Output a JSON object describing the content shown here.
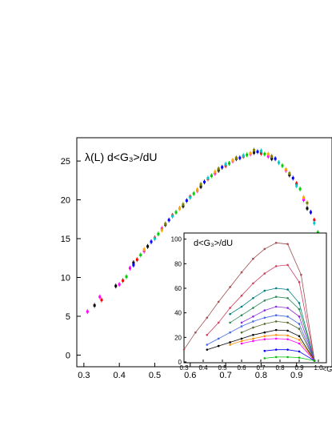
{
  "chart_data": [
    {
      "type": "scatter",
      "title": "",
      "annotation": "λ(L) d<G₃>/dU",
      "xlabel": "",
      "ylabel": "",
      "xlim": [
        0.28,
        1.0
      ],
      "ylim": [
        -1.5,
        28
      ],
      "xticks": [
        "0.3",
        "0.4",
        "0.5",
        "0.6",
        "0.7",
        "0.8",
        "0.9"
      ],
      "yticks": [
        "0",
        "5",
        "10",
        "15",
        "20",
        "25"
      ],
      "grid": false,
      "series": [
        {
          "color": "#ff00ff",
          "x": [
            0.31,
            0.345,
            0.4,
            0.43,
            0.47,
            0.52,
            0.57,
            0.62,
            0.67,
            0.72,
            0.77,
            0.82,
            0.87,
            0.92
          ],
          "y": [
            5.6,
            7.5,
            9.1,
            11.2,
            13.4,
            16.3,
            18.9,
            21.2,
            23.4,
            25.0,
            25.9,
            25.6,
            23.8,
            20.0
          ]
        },
        {
          "color": "#000000",
          "x": [
            0.33,
            0.39,
            0.44,
            0.48,
            0.53,
            0.58,
            0.63,
            0.68,
            0.73,
            0.78,
            0.83,
            0.88,
            0.93
          ],
          "y": [
            6.4,
            8.9,
            11.9,
            14.0,
            16.8,
            19.2,
            21.7,
            23.8,
            25.3,
            26.1,
            25.3,
            23.2,
            18.9
          ]
        },
        {
          "color": "#ff0000",
          "x": [
            0.35,
            0.41,
            0.45,
            0.5,
            0.55,
            0.6,
            0.65,
            0.7,
            0.75,
            0.8,
            0.85,
            0.9,
            0.95
          ],
          "y": [
            7.1,
            9.6,
            12.3,
            15.1,
            18.0,
            20.4,
            22.7,
            24.4,
            25.6,
            26.0,
            24.8,
            22.1,
            17.4
          ]
        },
        {
          "color": "#00cc00",
          "x": [
            0.42,
            0.46,
            0.51,
            0.56,
            0.61,
            0.66,
            0.71,
            0.76,
            0.81,
            0.86,
            0.91,
            0.96
          ],
          "y": [
            10.1,
            12.9,
            15.6,
            18.4,
            20.8,
            23.1,
            24.7,
            25.8,
            25.9,
            24.4,
            21.4,
            15.8
          ]
        },
        {
          "color": "#0000ff",
          "x": [
            0.44,
            0.49,
            0.54,
            0.59,
            0.64,
            0.69,
            0.74,
            0.79,
            0.84,
            0.89,
            0.94
          ],
          "y": [
            11.6,
            14.6,
            17.4,
            19.9,
            22.3,
            24.2,
            25.4,
            26.2,
            25.3,
            22.8,
            18.4
          ]
        },
        {
          "color": "#ffa500",
          "x": [
            0.47,
            0.52,
            0.57,
            0.62,
            0.67,
            0.72,
            0.77,
            0.82,
            0.87,
            0.92,
            0.97
          ],
          "y": [
            13.6,
            16.1,
            18.9,
            21.3,
            23.6,
            25.1,
            26.0,
            25.9,
            23.9,
            20.3,
            14.6
          ]
        },
        {
          "color": "#00cccc",
          "x": [
            0.5,
            0.55,
            0.6,
            0.65,
            0.7,
            0.75,
            0.8,
            0.85,
            0.9,
            0.95
          ],
          "y": [
            15.0,
            17.9,
            20.3,
            22.8,
            24.6,
            25.7,
            26.3,
            24.8,
            21.8,
            17.0
          ]
        },
        {
          "color": "#808000",
          "x": [
            0.53,
            0.58,
            0.63,
            0.68,
            0.73,
            0.78,
            0.83,
            0.88,
            0.93
          ],
          "y": [
            16.9,
            19.4,
            22.0,
            24.0,
            25.4,
            26.4,
            25.6,
            23.4,
            19.6
          ]
        }
      ]
    },
    {
      "type": "line",
      "title": "",
      "annotation": "d<G₃>/dU",
      "xlabel": "<G",
      "ylabel": "",
      "xlim": [
        0.3,
        1.0
      ],
      "ylim": [
        0,
        105
      ],
      "xticks": [
        "0.3",
        "0.4",
        "0.5",
        "0.6",
        "0.7",
        "0.8",
        "0.9",
        "1.0"
      ],
      "yticks": [
        "0",
        "20",
        "40",
        "60",
        "80",
        "100"
      ],
      "grid": false,
      "series": [
        {
          "color": "#a05050",
          "x": [
            0.3,
            0.36,
            0.42,
            0.48,
            0.54,
            0.6,
            0.66,
            0.72,
            0.78,
            0.84,
            0.91,
            0.98
          ],
          "y": [
            10,
            24,
            36,
            49,
            61,
            73,
            84,
            92,
            97,
            96,
            71,
            1
          ]
        },
        {
          "color": "#d04060",
          "x": [
            0.42,
            0.48,
            0.54,
            0.6,
            0.66,
            0.72,
            0.78,
            0.84,
            0.9,
            0.98
          ],
          "y": [
            22,
            32,
            44,
            54,
            64,
            72,
            78,
            79,
            65,
            1
          ]
        },
        {
          "color": "#008080",
          "x": [
            0.54,
            0.6,
            0.66,
            0.72,
            0.78,
            0.84,
            0.9,
            0.98
          ],
          "y": [
            39,
            45,
            52,
            58,
            60,
            59,
            48,
            1
          ]
        },
        {
          "color": "#2e8b57",
          "x": [
            0.54,
            0.6,
            0.66,
            0.72,
            0.78,
            0.84,
            0.9,
            0.98
          ],
          "y": [
            32,
            38,
            44,
            50,
            53,
            52,
            43,
            1
          ]
        },
        {
          "color": "#8a2be2",
          "x": [
            0.6,
            0.66,
            0.72,
            0.78,
            0.84,
            0.9,
            0.98
          ],
          "y": [
            32,
            37,
            42,
            45,
            44,
            37,
            1
          ]
        },
        {
          "color": "#4169e1",
          "x": [
            0.42,
            0.48,
            0.54,
            0.6,
            0.66,
            0.72,
            0.78,
            0.84,
            0.9,
            0.98
          ],
          "y": [
            14,
            19,
            24,
            29,
            33,
            36,
            38,
            37,
            31,
            1
          ]
        },
        {
          "color": "#556b2f",
          "x": [
            0.6,
            0.66,
            0.72,
            0.78,
            0.84,
            0.9,
            0.98
          ],
          "y": [
            24,
            28,
            31,
            33,
            32,
            27,
            1
          ]
        },
        {
          "color": "#000000",
          "x": [
            0.42,
            0.48,
            0.54,
            0.6,
            0.66,
            0.72,
            0.78,
            0.84,
            0.9,
            0.98
          ],
          "y": [
            10,
            13,
            16,
            19,
            22,
            24,
            26,
            25.5,
            21,
            1
          ]
        },
        {
          "color": "#ff8c00",
          "x": [
            0.54,
            0.6,
            0.66,
            0.72,
            0.78,
            0.84,
            0.9,
            0.98
          ],
          "y": [
            14,
            17,
            19,
            21,
            22,
            21.5,
            18,
            1
          ]
        },
        {
          "color": "#ff00ff",
          "x": [
            0.6,
            0.66,
            0.72,
            0.78,
            0.84,
            0.9,
            0.98
          ],
          "y": [
            15,
            17,
            18.5,
            19,
            18.5,
            15,
            1
          ]
        },
        {
          "color": "#0000ff",
          "x": [
            0.72,
            0.78,
            0.84,
            0.9,
            0.98
          ],
          "y": [
            9,
            10,
            10,
            8.5,
            1
          ]
        },
        {
          "color": "#00c000",
          "x": [
            0.72,
            0.78,
            0.84,
            0.9,
            0.98
          ],
          "y": [
            3,
            4,
            4,
            3.5,
            1
          ]
        }
      ]
    }
  ]
}
